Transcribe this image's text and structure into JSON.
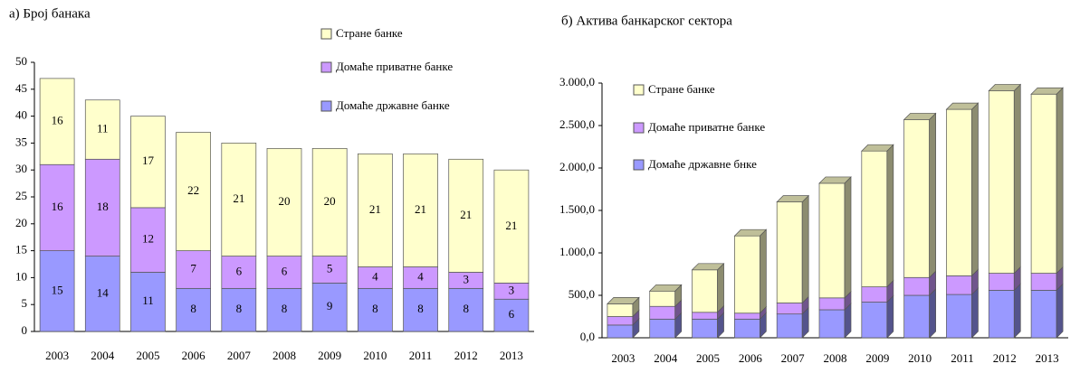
{
  "chart_data": [
    {
      "type": "bar",
      "stacked": true,
      "title": "а) Број банака",
      "show_values": true,
      "depth3d": false,
      "categories": [
        "2003",
        "2004",
        "2005",
        "2006",
        "2007",
        "2008",
        "2009",
        "2010",
        "2011",
        "2012",
        "2013"
      ],
      "series": [
        {
          "name": "Домаће државне банке",
          "color": "#9999ff",
          "values": [
            15,
            14,
            11,
            8,
            8,
            8,
            9,
            8,
            8,
            8,
            6
          ]
        },
        {
          "name": "Домаће приватне банке",
          "color": "#cc99ff",
          "values": [
            16,
            18,
            12,
            7,
            6,
            6,
            5,
            4,
            4,
            3,
            3
          ]
        },
        {
          "name": "Стране банке",
          "color": "#ffffcc",
          "values": [
            16,
            11,
            17,
            22,
            21,
            20,
            20,
            21,
            21,
            21,
            21
          ]
        }
      ],
      "ylim": [
        0,
        50
      ],
      "yticks": [
        0,
        5,
        10,
        15,
        20,
        25,
        30,
        35,
        40,
        45,
        50
      ]
    },
    {
      "type": "bar",
      "stacked": true,
      "title": "б) Актива банкарског сектора",
      "show_values": false,
      "depth3d": true,
      "categories": [
        "2003",
        "2004",
        "2005",
        "2006",
        "2007",
        "2008",
        "2009",
        "2010",
        "2011",
        "2012",
        "2013"
      ],
      "series": [
        {
          "name": "Домаће државне бнке",
          "color": "#9999ff",
          "values": [
            150,
            220,
            220,
            220,
            280,
            330,
            420,
            500,
            510,
            560,
            560
          ]
        },
        {
          "name": "Домаће приватне банке",
          "color": "#cc99ff",
          "values": [
            100,
            150,
            80,
            70,
            130,
            140,
            180,
            210,
            220,
            200,
            200
          ]
        },
        {
          "name": "Стране банке",
          "color": "#ffffcc",
          "values": [
            150,
            180,
            500,
            910,
            1190,
            1350,
            1600,
            1860,
            1960,
            2150,
            2110
          ]
        }
      ],
      "ylim": [
        0,
        3000
      ],
      "yticks": [
        {
          "value": 0,
          "label": "0,0"
        },
        {
          "value": 500,
          "label": "500,0"
        },
        {
          "value": 1000,
          "label": "1.000,0"
        },
        {
          "value": 1500,
          "label": "1.500,0"
        },
        {
          "value": 2000,
          "label": "2.000,0"
        },
        {
          "value": 2500,
          "label": "2.500,0"
        },
        {
          "value": 3000,
          "label": "3.000,0"
        }
      ]
    }
  ]
}
